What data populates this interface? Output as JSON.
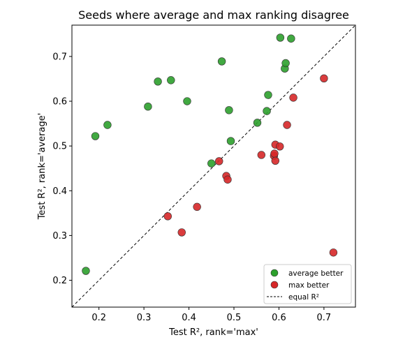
{
  "chart_data": {
    "type": "scatter",
    "title": "Seeds where average and max ranking disagree",
    "xlabel": "Test R², rank='max'",
    "ylabel": "Test R², rank='average'",
    "xlim": [
      0.14,
      0.77
    ],
    "ylim": [
      0.14,
      0.77
    ],
    "xticks": [
      0.2,
      0.3,
      0.4,
      0.5,
      0.6,
      0.7
    ],
    "yticks": [
      0.2,
      0.3,
      0.4,
      0.5,
      0.6,
      0.7
    ],
    "xtick_labels": [
      "0.2",
      "0.3",
      "0.4",
      "0.5",
      "0.6",
      "0.7"
    ],
    "ytick_labels": [
      "0.2",
      "0.3",
      "0.4",
      "0.5",
      "0.6",
      "0.7"
    ],
    "grid": false,
    "legend_position": "bottom-right",
    "series": [
      {
        "name": "average better",
        "color": "#2ca02c",
        "points": [
          [
            0.171,
            0.221
          ],
          [
            0.192,
            0.522
          ],
          [
            0.219,
            0.547
          ],
          [
            0.309,
            0.588
          ],
          [
            0.331,
            0.644
          ],
          [
            0.36,
            0.647
          ],
          [
            0.396,
            0.6
          ],
          [
            0.45,
            0.461
          ],
          [
            0.473,
            0.689
          ],
          [
            0.489,
            0.58
          ],
          [
            0.493,
            0.511
          ],
          [
            0.552,
            0.552
          ],
          [
            0.573,
            0.578
          ],
          [
            0.576,
            0.614
          ],
          [
            0.603,
            0.742
          ],
          [
            0.613,
            0.673
          ],
          [
            0.615,
            0.685
          ],
          [
            0.627,
            0.74
          ]
        ]
      },
      {
        "name": "max better",
        "color": "#d62728",
        "points": [
          [
            0.353,
            0.343
          ],
          [
            0.384,
            0.307
          ],
          [
            0.418,
            0.364
          ],
          [
            0.467,
            0.466
          ],
          [
            0.483,
            0.433
          ],
          [
            0.486,
            0.425
          ],
          [
            0.561,
            0.48
          ],
          [
            0.589,
            0.478
          ],
          [
            0.59,
            0.483
          ],
          [
            0.592,
            0.467
          ],
          [
            0.592,
            0.503
          ],
          [
            0.602,
            0.499
          ],
          [
            0.618,
            0.547
          ],
          [
            0.632,
            0.608
          ],
          [
            0.7,
            0.651
          ],
          [
            0.721,
            0.262
          ]
        ]
      }
    ],
    "reference_line": {
      "name": "equal R²",
      "style": "dashed",
      "color": "#000000"
    }
  }
}
